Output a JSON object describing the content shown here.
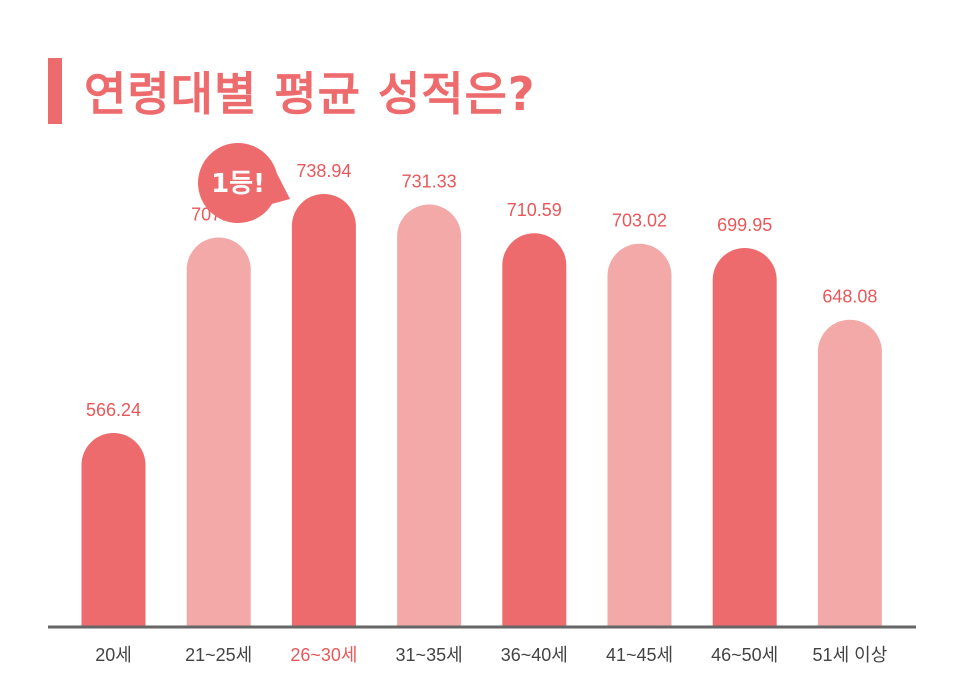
{
  "header": {
    "title": "연령대별 평균 성적은?"
  },
  "callout": {
    "text": "1등!",
    "target_index": 2
  },
  "colors": {
    "dark": "#ee6b6d",
    "light": "#f4a9a9",
    "accent": "#ee6b6d",
    "axis": "#666666"
  },
  "chart_data": {
    "type": "bar",
    "title": "연령대별 평균 성적은?",
    "xlabel": "",
    "ylabel": "",
    "categories": [
      "20세",
      "21~25세",
      "26~30세",
      "31~35세",
      "36~40세",
      "41~45세",
      "46~50세",
      "51세 이상"
    ],
    "values": [
      566.24,
      707.54,
      738.94,
      731.33,
      710.59,
      703.02,
      699.95,
      648.08
    ],
    "value_labels": [
      "566.24",
      "707.54",
      "738.94",
      "731.33",
      "710.59",
      "703.02",
      "699.95",
      "648.08"
    ],
    "bar_colors": [
      "#ee6b6d",
      "#f4a9a9",
      "#ee6b6d",
      "#f4a9a9",
      "#ee6b6d",
      "#f4a9a9",
      "#ee6b6d",
      "#f4a9a9"
    ],
    "highlight_index": 2,
    "grid": false,
    "legend": "none"
  }
}
